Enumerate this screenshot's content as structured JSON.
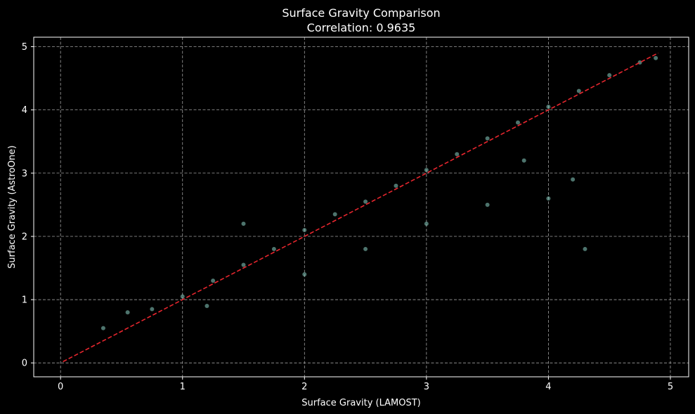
{
  "chart_data": {
    "type": "scatter",
    "title": "Surface Gravity Comparison",
    "subtitle": "Correlation: 0.9635",
    "xlabel": "Surface Gravity (LAMOST)",
    "ylabel": "Surface Gravity (AstroOne)",
    "xlim": [
      -0.22,
      5.15
    ],
    "ylim": [
      -0.22,
      5.15
    ],
    "x_ticks": [
      0,
      1,
      2,
      3,
      4,
      5
    ],
    "y_ticks": [
      0,
      1,
      2,
      3,
      4,
      5
    ],
    "grid": true,
    "grid_style": "dashed",
    "series": [
      {
        "point_color": "#8dd3c7",
        "approx_points": [
          [
            0.35,
            0.55
          ],
          [
            0.55,
            0.8
          ],
          [
            0.75,
            0.85
          ],
          [
            1.0,
            1.05
          ],
          [
            1.25,
            1.3
          ],
          [
            1.5,
            1.55
          ],
          [
            1.75,
            1.8
          ],
          [
            2.0,
            2.1
          ],
          [
            2.25,
            2.35
          ],
          [
            2.5,
            2.55
          ],
          [
            2.75,
            2.8
          ],
          [
            3.0,
            3.05
          ],
          [
            3.25,
            3.3
          ],
          [
            3.5,
            3.55
          ],
          [
            3.75,
            3.8
          ],
          [
            4.0,
            4.05
          ],
          [
            4.25,
            4.3
          ],
          [
            4.5,
            4.55
          ],
          [
            4.75,
            4.75
          ],
          [
            4.88,
            4.82
          ],
          [
            2.5,
            1.8
          ],
          [
            3.0,
            2.2
          ],
          [
            3.5,
            2.5
          ],
          [
            4.0,
            2.6
          ],
          [
            4.2,
            2.9
          ],
          [
            4.3,
            1.8
          ],
          [
            2.0,
            1.4
          ],
          [
            1.5,
            2.2
          ],
          [
            1.2,
            0.9
          ],
          [
            3.8,
            3.2
          ]
        ]
      },
      {
        "name": "",
        "line_color": "#e8262e",
        "line_style": "dashed",
        "line_points": [
          [
            0.02,
            0.02
          ],
          [
            4.9,
            4.9
          ]
        ]
      }
    ]
  }
}
